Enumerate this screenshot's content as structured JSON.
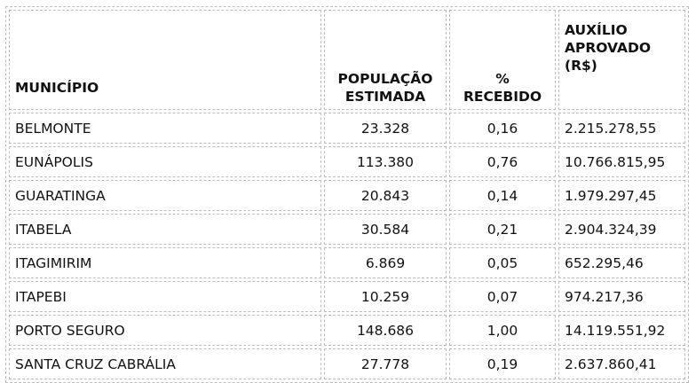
{
  "headers": {
    "municipio": "MUNICÍPIO",
    "populacao": "POPULAÇÃO ESTIMADA",
    "percentual": "% RECEBIDO",
    "auxilio": "AUXÍLIO APROVADO (R$)"
  },
  "rows": [
    {
      "municipio": "BELMONTE",
      "populacao": "23.328",
      "percentual": "0,16",
      "auxilio": "2.215.278,55"
    },
    {
      "municipio": "EUNÁPOLIS",
      "populacao": "113.380",
      "percentual": "0,76",
      "auxilio": "10.766.815,95"
    },
    {
      "municipio": "GUARATINGA",
      "populacao": "20.843",
      "percentual": "0,14",
      "auxilio": "1.979.297,45"
    },
    {
      "municipio": "ITABELA",
      "populacao": "30.584",
      "percentual": "0,21",
      "auxilio": "2.904.324,39"
    },
    {
      "municipio": "ITAGIMIRIM",
      "populacao": "6.869",
      "percentual": "0,05",
      "auxilio": "652.295,46"
    },
    {
      "municipio": "ITAPEBI",
      "populacao": "10.259",
      "percentual": "0,07",
      "auxilio": "974.217,36"
    },
    {
      "municipio": "PORTO SEGURO",
      "populacao": "148.686",
      "percentual": "1,00",
      "auxilio": "14.119.551,92"
    },
    {
      "municipio": "SANTA CRUZ CABRÁLIA",
      "populacao": "27.778",
      "percentual": "0,19",
      "auxilio": "2.637.860,41"
    }
  ]
}
